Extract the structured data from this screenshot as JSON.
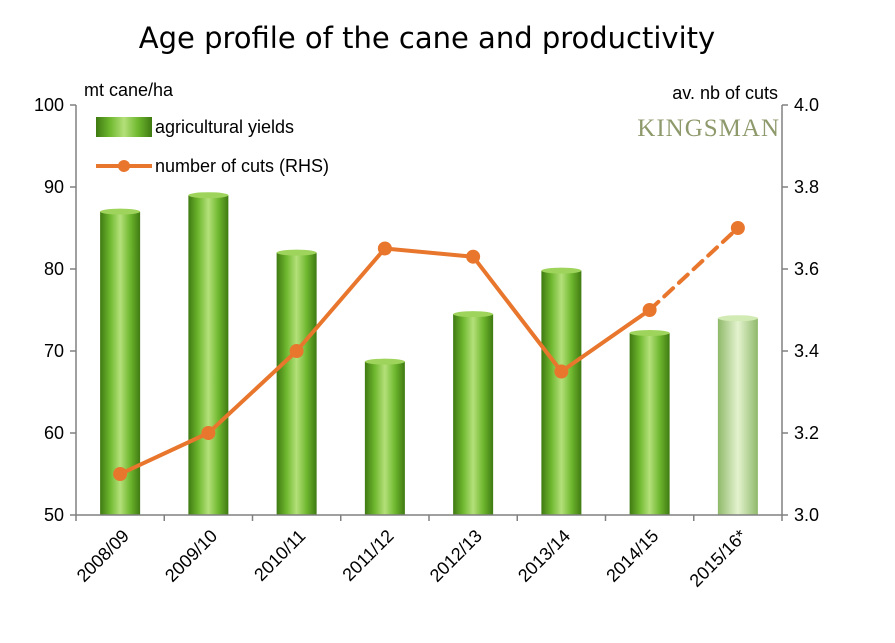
{
  "chart_data": {
    "type": "bar",
    "title": "Age profile of the cane and productivity",
    "brand": "KINGSMAN",
    "categories": [
      "2008/09",
      "2009/10",
      "2010/11",
      "2011/12",
      "2012/13",
      "2013/14",
      "2014/15",
      "2015/16*"
    ],
    "y_left": {
      "label": "mt cane/ha",
      "range": [
        50,
        100
      ],
      "ticks": [
        "50",
        "60",
        "70",
        "80",
        "90",
        "100"
      ]
    },
    "y_right": {
      "label": "av. nb of cuts",
      "range": [
        3.0,
        4.0
      ],
      "ticks": [
        "3.0",
        "3.2",
        "3.4",
        "3.6",
        "3.8",
        "4.0"
      ]
    },
    "series": [
      {
        "name": "agricultural yields",
        "type": "bar",
        "axis": "left",
        "color": "#7dc142",
        "values": [
          87,
          89,
          82,
          68.7,
          74.5,
          79.8,
          72.2,
          74
        ],
        "forecast_from_index": 7,
        "forecast_color": "#b4d88f"
      },
      {
        "name": "number of cuts (RHS)",
        "type": "line",
        "axis": "right",
        "color": "#e8762d",
        "values": [
          3.1,
          3.2,
          3.4,
          3.65,
          3.63,
          3.35,
          3.5,
          3.7
        ],
        "dashed_from_index": 6
      }
    ],
    "legend_position": "top-left",
    "grid": false
  }
}
